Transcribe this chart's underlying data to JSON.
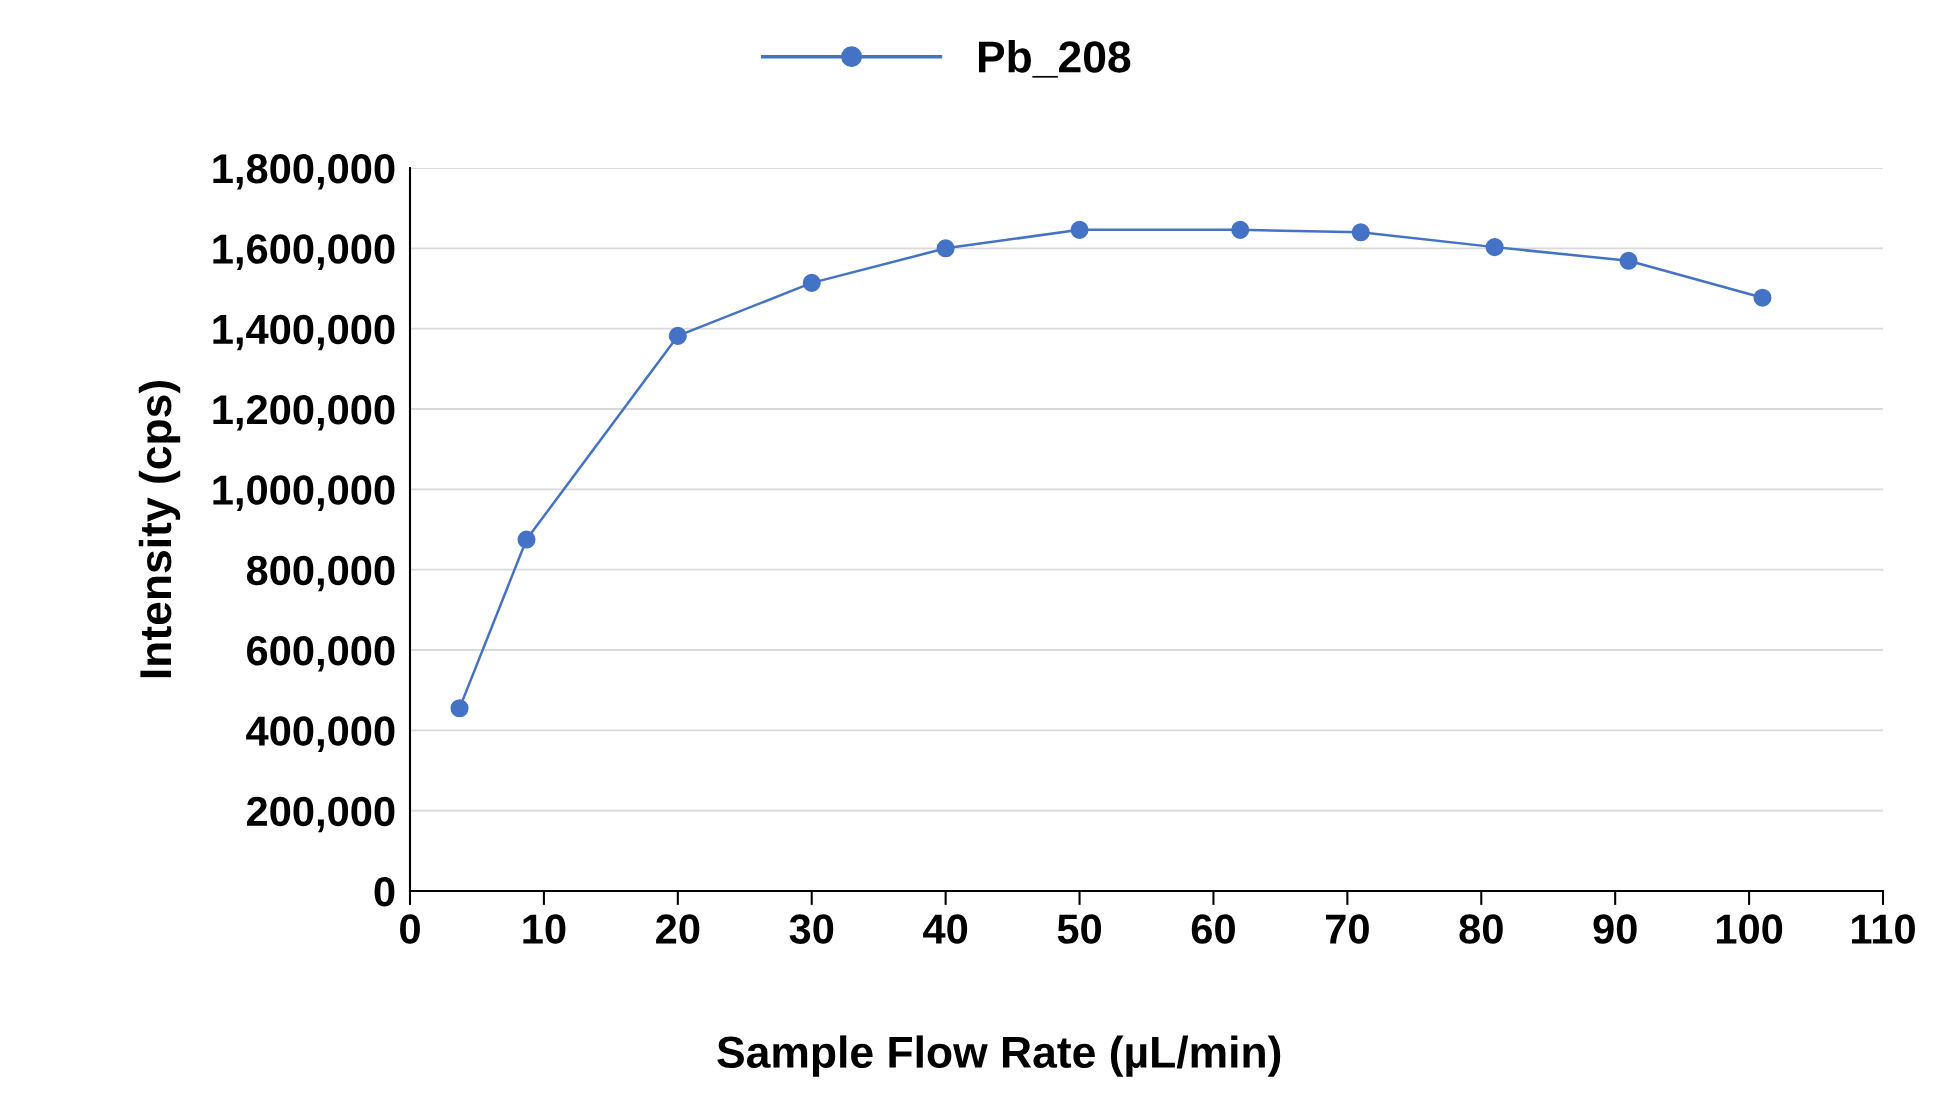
{
  "chart_data": {
    "type": "line",
    "xlabel": "Sample Flow Rate (µL/min)",
    "ylabel": "Intensity (cps)",
    "series": [
      {
        "name": "Pb_208",
        "color": "#4472c4",
        "x": [
          3.7,
          8.7,
          20,
          30,
          40,
          50,
          62,
          71,
          81,
          91,
          101
        ],
        "values": [
          455000,
          875000,
          1382000,
          1514000,
          1600000,
          1646000,
          1646000,
          1640000,
          1603000,
          1569000,
          1477000
        ]
      }
    ],
    "xlim": [
      0,
      110
    ],
    "xticks": [
      0,
      10,
      20,
      30,
      40,
      50,
      60,
      70,
      80,
      90,
      100,
      110
    ],
    "ylim": [
      0,
      1800000
    ],
    "yticks": [
      {
        "value": 0,
        "label": "0"
      },
      {
        "value": 200000,
        "label": "200,000"
      },
      {
        "value": 400000,
        "label": "400,000"
      },
      {
        "value": 600000,
        "label": "600,000"
      },
      {
        "value": 800000,
        "label": "800,000"
      },
      {
        "value": 1000000,
        "label": "1,000,000"
      },
      {
        "value": 1200000,
        "label": "1,200,000"
      },
      {
        "value": 1400000,
        "label": "1,400,000"
      },
      {
        "value": 1600000,
        "label": "1,600,000"
      },
      {
        "value": 1800000,
        "label": "1,800,000"
      }
    ],
    "grid": "y",
    "legend": "top",
    "marker": "circle",
    "line_style": "solid"
  }
}
